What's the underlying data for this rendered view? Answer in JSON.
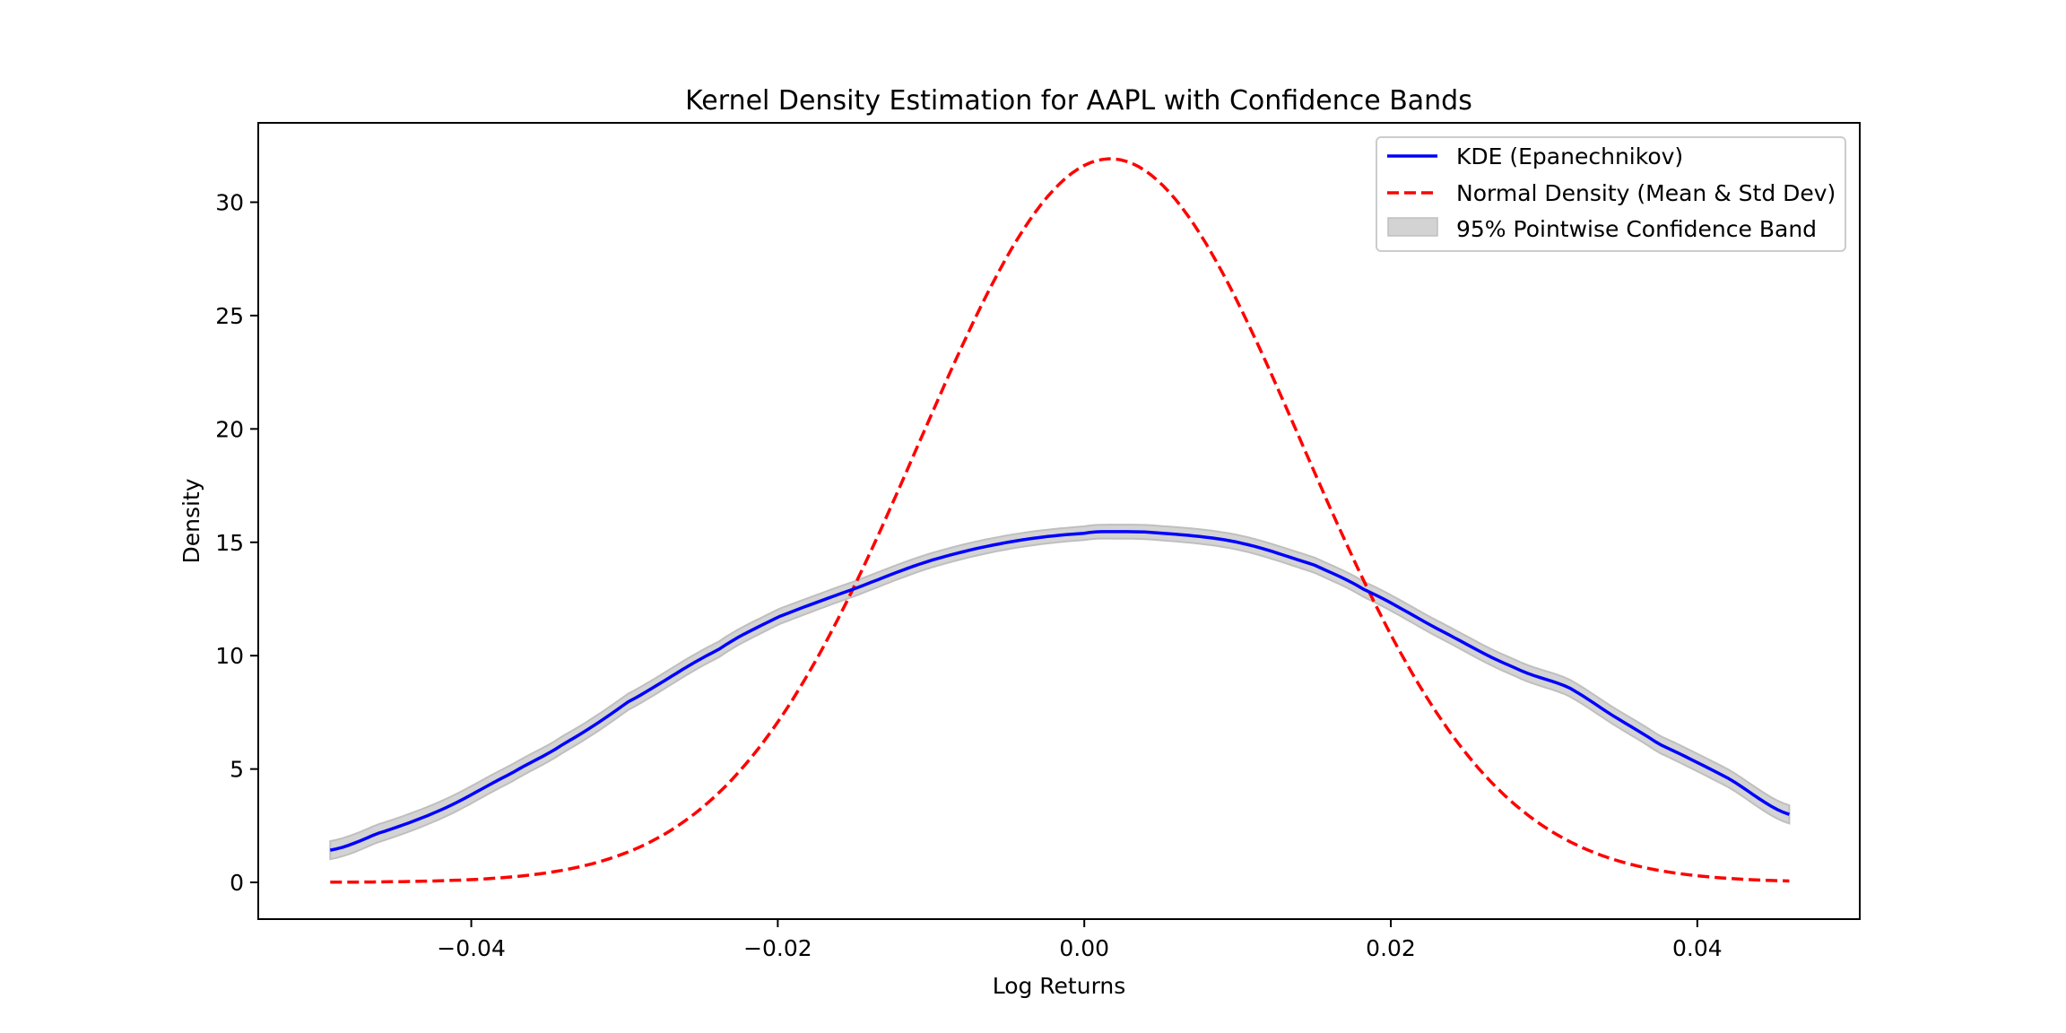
{
  "chart_data": {
    "type": "line",
    "title": "Kernel Density Estimation for AAPL with Confidence Bands",
    "xlabel": "Log Returns",
    "ylabel": "Density",
    "xlim": [
      -0.0539,
      0.0506
    ],
    "ylim": [
      -1.62,
      33.5
    ],
    "grid": false,
    "legend_position": "top-right",
    "xticks": [
      -0.04,
      -0.02,
      0.0,
      0.02,
      0.04
    ],
    "xtick_labels": [
      "−0.04",
      "−0.02",
      "0.00",
      "0.02",
      "0.04"
    ],
    "yticks": [
      0,
      5,
      10,
      15,
      20,
      25,
      30
    ],
    "ytick_labels": [
      "0",
      "5",
      "10",
      "15",
      "20",
      "25",
      "30"
    ],
    "colors": {
      "kde": "#0000ff",
      "normal": "#ff0000",
      "band_fill": "#d3d3d3",
      "band_edge": "#bfbfbf"
    },
    "series": [
      {
        "name": "KDE (Epanechnikov)",
        "style": "solid",
        "x": [
          -0.0492,
          -0.0462,
          -0.0418,
          -0.0374,
          -0.034,
          -0.0298,
          -0.0239,
          -0.02,
          -0.0148,
          -0.01,
          -0.005,
          0.0,
          0.0018,
          0.005,
          0.01,
          0.015,
          0.0183,
          0.023,
          0.028,
          0.0316,
          0.0345,
          0.0375,
          0.042,
          0.046
        ],
        "y": [
          1.42,
          2.14,
          3.25,
          4.8,
          6.1,
          7.95,
          10.25,
          11.7,
          13.0,
          14.2,
          15.0,
          15.4,
          15.47,
          15.4,
          15.0,
          14.0,
          12.9,
          11.2,
          9.5,
          8.6,
          7.35,
          6.1,
          4.6,
          3.0
        ]
      },
      {
        "name": "Normal Density (Mean & Std Dev)",
        "style": "dashed",
        "distribution": "normal",
        "mean": 0.0017,
        "std": 0.0125,
        "x_range": [
          -0.0492,
          0.046
        ],
        "peak": 31.9
      }
    ],
    "band": {
      "name": "95% Pointwise Confidence Band",
      "halfwidth_at_ends": 0.4,
      "halfwidth_at_center": 0.3
    }
  }
}
